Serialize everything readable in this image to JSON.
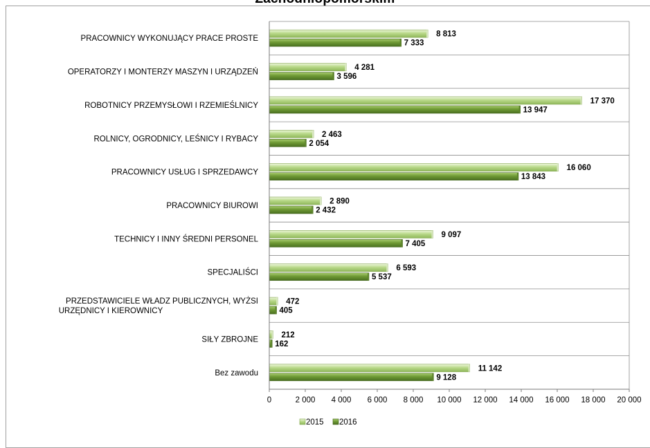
{
  "chart_data": {
    "type": "bar",
    "orientation": "horizontal",
    "title": "Zachodniopomorskim",
    "categories": [
      "PRACOWNICY WYKONUJĄCY PRACE PROSTE",
      "OPERATORZY I MONTERZY MASZYN I URZĄDZEŃ",
      "ROBOTNICY PRZEMYSŁOWI I RZEMIEŚLNICY",
      "ROLNICY, OGRODNICY, LEŚNICY I RYBACY",
      "PRACOWNICY USŁUG I SPRZEDAWCY",
      "PRACOWNICY BIUROWI",
      "TECHNICY I INNY ŚREDNI PERSONEL",
      "SPECJALIŚCI",
      "PRZEDSTAWICIELE WŁADZ PUBLICZNYCH, WYŻSI URZĘDNICY I KIEROWNICY",
      "SIŁY ZBROJNE",
      "Bez zawodu"
    ],
    "category_lines": [
      [
        "PRACOWNICY WYKONUJĄCY PRACE PROSTE"
      ],
      [
        "OPERATORZY I MONTERZY MASZYN I URZĄDZEŃ"
      ],
      [
        "ROBOTNICY PRZEMYSŁOWI I RZEMIEŚLNICY"
      ],
      [
        "ROLNICY, OGRODNICY, LEŚNICY I RYBACY"
      ],
      [
        "PRACOWNICY USŁUG I SPRZEDAWCY"
      ],
      [
        "PRACOWNICY BIUROWI"
      ],
      [
        "TECHNICY I INNY ŚREDNI PERSONEL"
      ],
      [
        "SPECJALIŚCI"
      ],
      [
        "PRZEDSTAWICIELE WŁADZ PUBLICZNYCH, WYŻSI",
        "URZĘDNICY I KIEROWNICY"
      ],
      [
        "SIŁY ZBROJNE"
      ],
      [
        "Bez zawodu"
      ]
    ],
    "series": [
      {
        "name": "2015",
        "color": "#b9d98a",
        "values": [
          8813,
          4281,
          17370,
          2463,
          16060,
          2890,
          9097,
          6593,
          472,
          212,
          11142
        ],
        "labels": [
          "8 813",
          "4 281",
          "17 370",
          "2 463",
          "16 060",
          "2 890",
          "9 097",
          "6 593",
          "472",
          "212",
          "11 142"
        ]
      },
      {
        "name": "2016",
        "color": "#6f9a35",
        "values": [
          7333,
          3596,
          13947,
          2054,
          13843,
          2432,
          7405,
          5537,
          405,
          162,
          9128
        ],
        "labels": [
          "7 333",
          "3 596",
          "13 947",
          "2 054",
          "13 843",
          "2 432",
          "7 405",
          "5 537",
          "405",
          "162",
          "9 128"
        ]
      }
    ],
    "xlim": [
      0,
      20000
    ],
    "xticks": [
      0,
      2000,
      4000,
      6000,
      8000,
      10000,
      12000,
      14000,
      16000,
      18000,
      20000
    ],
    "xtick_labels": [
      "0",
      "2 000",
      "4 000",
      "6 000",
      "8 000",
      "10 000",
      "12 000",
      "14 000",
      "16 000",
      "18 000",
      "20 000"
    ],
    "grid": true,
    "legend_position": "bottom"
  }
}
